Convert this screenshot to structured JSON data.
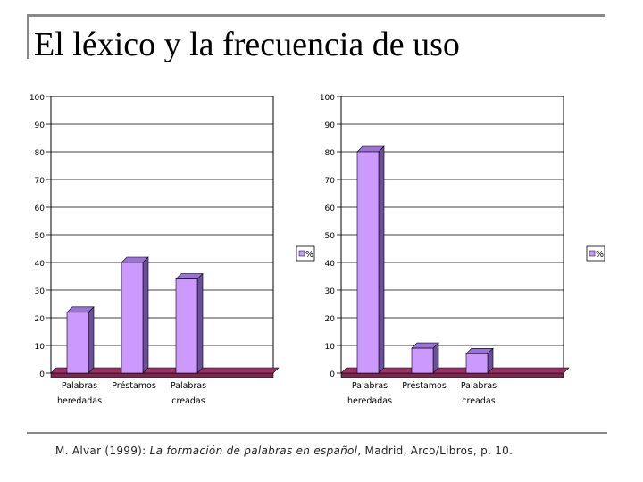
{
  "header": {
    "title": "El léxico y la frecuencia de uso"
  },
  "citation": {
    "prefix": "M. Alvar (1999): ",
    "book_title": "La formación de palabras en español",
    "suffix": ", Madrid, Arco/Libros, p. 10."
  },
  "colors": {
    "bar": "#cc99ff",
    "bar_top": "#9a72d8",
    "bar_side": "#6c4f9a",
    "floor": "#993366",
    "floor_top": "#7a2850"
  },
  "chart_data": [
    {
      "type": "bar",
      "title": "",
      "categories": [
        [
          "Palabras",
          "heredadas"
        ],
        [
          "Préstamos"
        ],
        [
          "Palabras",
          "creadas"
        ]
      ],
      "values": [
        22,
        40,
        34
      ],
      "ylim": [
        0,
        100
      ],
      "yticks": [
        0,
        10,
        20,
        30,
        40,
        50,
        60,
        70,
        80,
        90,
        100
      ],
      "legend": "%",
      "xlabel": "",
      "ylabel": ""
    },
    {
      "type": "bar",
      "title": "",
      "categories": [
        [
          "Palabras",
          "heredadas"
        ],
        [
          "Préstamos"
        ],
        [
          "Palabras",
          "creadas"
        ]
      ],
      "values": [
        80,
        9,
        7
      ],
      "ylim": [
        0,
        100
      ],
      "yticks": [
        0,
        10,
        20,
        30,
        40,
        50,
        60,
        70,
        80,
        90,
        100
      ],
      "legend": "%",
      "xlabel": "",
      "ylabel": ""
    }
  ]
}
